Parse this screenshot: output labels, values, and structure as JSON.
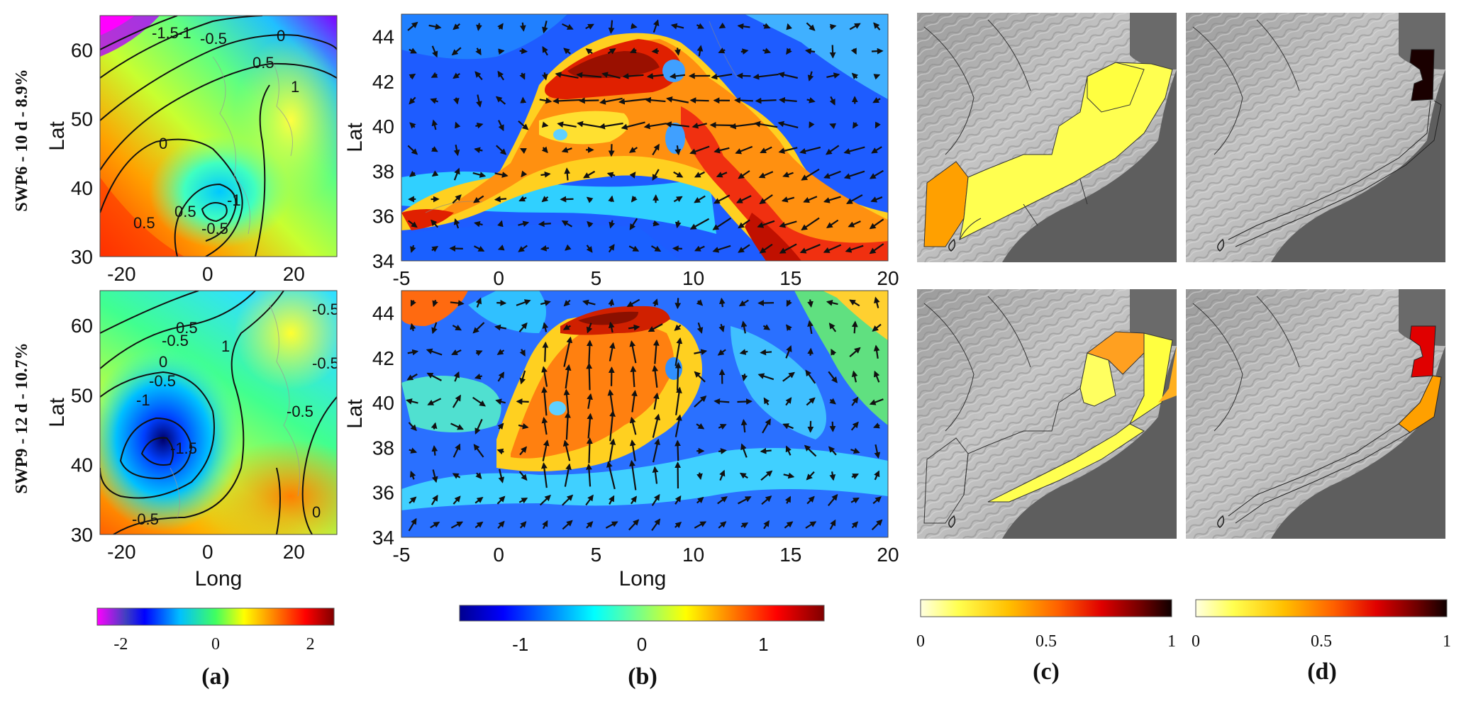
{
  "chart_data": [
    {
      "type": "heatmap",
      "panel": "(a)",
      "row_labels": [
        "SWP6 - 10 d - 8.9%",
        "SWP9 - 12 d - 10.7%"
      ],
      "xlabel": "Long",
      "ylabel": "Lat",
      "xlim": [
        -25,
        30
      ],
      "ylim": [
        30,
        65
      ],
      "xticks": [
        "-20",
        "0",
        "20"
      ],
      "yticks": [
        "30",
        "40",
        "50",
        "60"
      ],
      "colorbar": {
        "min": -2.5,
        "max": 2.5,
        "ticks": [
          "-2",
          "0",
          "2"
        ],
        "colormap": "jet"
      },
      "contour_labels": [
        [
          "-1.5",
          "-1",
          "-0.5",
          "0",
          "0.5",
          "1",
          "0",
          "-1",
          "-0.5",
          "0.5",
          "0.5"
        ],
        [
          "-0.5",
          "-0.5",
          "-0.5",
          "0",
          "-0.5",
          "-1",
          "-1.5",
          "0.5",
          "1",
          "-0.5",
          "0",
          "-0.5"
        ]
      ]
    },
    {
      "type": "heatmap",
      "panel": "(b)",
      "xlabel": "Long",
      "ylabel": "Lat",
      "xlim": [
        -5,
        20
      ],
      "ylim": [
        34,
        45
      ],
      "xticks": [
        "-5",
        "0",
        "5",
        "10",
        "15",
        "20"
      ],
      "yticks": [
        "34",
        "36",
        "38",
        "40",
        "42",
        "44"
      ],
      "colorbar": {
        "min": -1.5,
        "max": 1.5,
        "ticks": [
          "-1",
          "0",
          "1"
        ],
        "colormap": "jet"
      }
    },
    {
      "type": "heatmap",
      "panel": "(c)",
      "colorbar": {
        "min": 0,
        "max": 1,
        "ticks": [
          "0",
          "0.5",
          "1"
        ],
        "colormap": "hot-reversed"
      }
    },
    {
      "type": "heatmap",
      "panel": "(d)",
      "colorbar": {
        "min": 0,
        "max": 1,
        "ticks": [
          "0",
          "0.5",
          "1"
        ],
        "colormap": "hot-reversed"
      }
    }
  ],
  "panel_labels": [
    "(a)",
    "(b)",
    "(c)",
    "(d)"
  ],
  "colors": {
    "jet": [
      "#7f0000",
      "#ff0000",
      "#ff8000",
      "#ffff00",
      "#80ff80",
      "#00ffff",
      "#0080ff",
      "#0000ff",
      "#00008f"
    ],
    "hot_r": [
      "#ffffe0",
      "#ffff40",
      "#ffd000",
      "#ff8000",
      "#ff2000",
      "#c00000",
      "#600000",
      "#100000"
    ],
    "relief_land": "#b8b8b8",
    "sea": "#5e5e5e"
  }
}
